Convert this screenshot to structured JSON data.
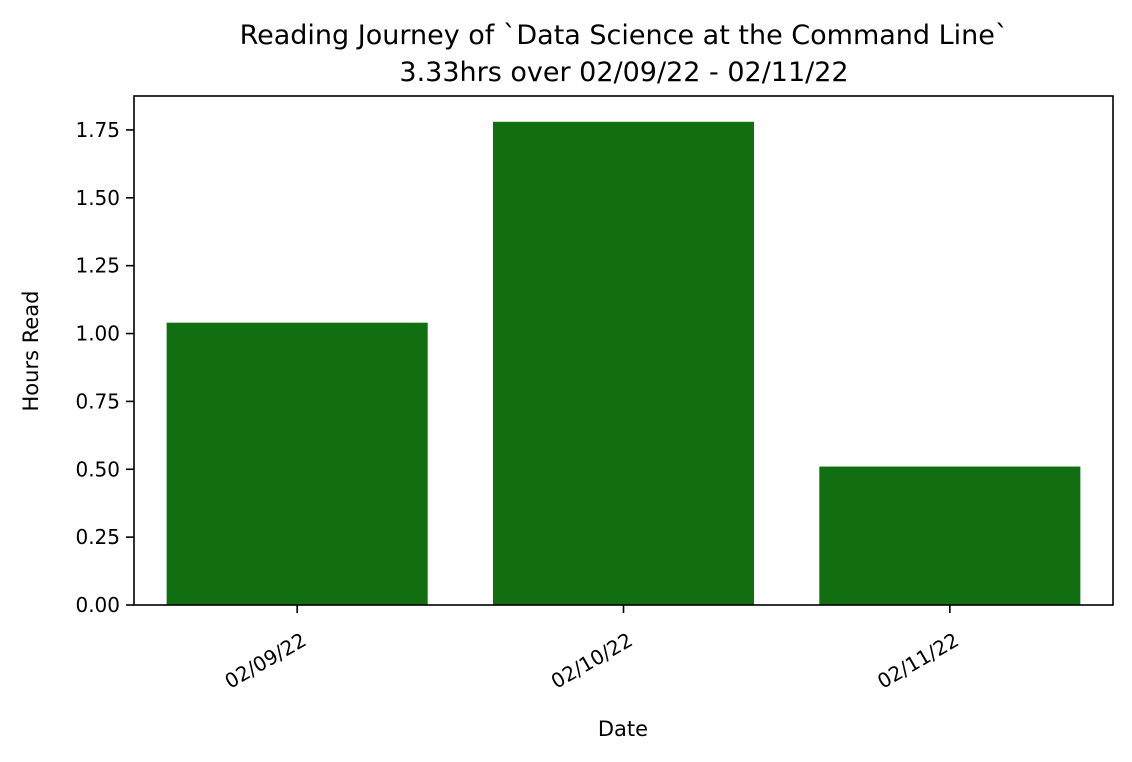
{
  "chart_data": {
    "type": "bar",
    "title": "Reading Journey of `Data Science at the Command Line`",
    "subtitle": "3.33hrs over 02/09/22 - 02/11/22",
    "xlabel": "Date",
    "ylabel": "Hours Read",
    "categories": [
      "02/09/22",
      "02/10/22",
      "02/11/22"
    ],
    "values": [
      1.04,
      1.78,
      0.51
    ],
    "ylim": [
      0,
      1.875
    ],
    "yticks": [
      0.0,
      0.25,
      0.5,
      0.75,
      1.0,
      1.25,
      1.5,
      1.75
    ],
    "ytick_labels": [
      "0.00",
      "0.25",
      "0.50",
      "0.75",
      "1.00",
      "1.25",
      "1.50",
      "1.75"
    ],
    "bar_color": "#116e11",
    "grid": false,
    "legend": "none"
  }
}
